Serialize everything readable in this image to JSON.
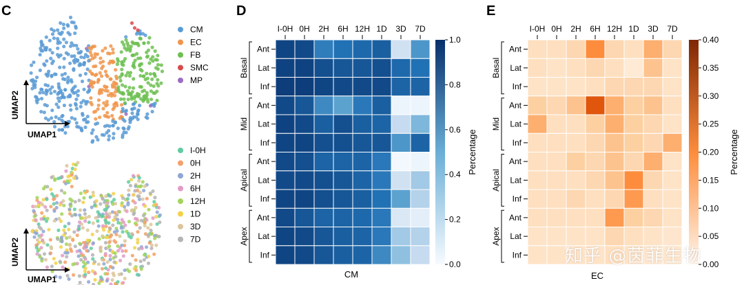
{
  "watermark": "知乎 @茵菲生物",
  "chart_data": [
    {
      "type": "scatter",
      "panel": "C",
      "xlabel": "UMAP1",
      "ylabel": "UMAP2",
      "legend": [
        "CM",
        "EC",
        "FB",
        "SMC",
        "MP"
      ],
      "colors": [
        "#5b9bd5",
        "#f0954a",
        "#6cc050",
        "#d84a4a",
        "#9b6cc0"
      ],
      "legend_position": "right"
    },
    {
      "type": "scatter",
      "xlabel": "UMAP1",
      "ylabel": "UMAP2",
      "legend": [
        "I-0H",
        "0H",
        "2H",
        "6H",
        "12H",
        "1D",
        "3D",
        "7D"
      ],
      "colors": [
        "#5fcca0",
        "#f3a06a",
        "#8ea6d4",
        "#e39ac6",
        "#a2d45a",
        "#f2d14a",
        "#dcc59a",
        "#b3b3b3"
      ],
      "legend_position": "right"
    },
    {
      "type": "heatmap",
      "panel": "D",
      "title": "CM",
      "columns": [
        "I-0H",
        "0H",
        "2H",
        "6H",
        "12H",
        "1D",
        "3D",
        "7D"
      ],
      "rows": [
        "Ant",
        "Lat",
        "Inf",
        "Ant",
        "Lat",
        "Inf",
        "Ant",
        "Lat",
        "Inf",
        "Ant",
        "Lat",
        "Inf"
      ],
      "row_groups": [
        "Basal",
        "Mid",
        "Apical",
        "Apex"
      ],
      "values": [
        [
          0.92,
          0.9,
          0.7,
          0.75,
          0.78,
          0.82,
          0.2,
          0.6
        ],
        [
          0.93,
          0.93,
          0.88,
          0.85,
          0.85,
          0.88,
          0.78,
          0.75
        ],
        [
          0.95,
          0.95,
          0.92,
          0.9,
          0.9,
          0.9,
          0.8,
          0.8
        ],
        [
          0.9,
          0.85,
          0.65,
          0.55,
          0.72,
          0.82,
          0.05,
          0.05
        ],
        [
          0.93,
          0.9,
          0.82,
          0.88,
          0.82,
          0.8,
          0.25,
          0.45
        ],
        [
          0.92,
          0.92,
          0.88,
          0.88,
          0.85,
          0.85,
          0.6,
          0.8
        ],
        [
          0.9,
          0.88,
          0.8,
          0.8,
          0.8,
          0.72,
          0.02,
          0.05
        ],
        [
          0.9,
          0.9,
          0.88,
          0.85,
          0.8,
          0.72,
          0.2,
          0.35
        ],
        [
          0.92,
          0.92,
          0.88,
          0.85,
          0.82,
          0.75,
          0.55,
          0.3
        ],
        [
          0.9,
          0.85,
          0.8,
          0.8,
          0.78,
          0.72,
          0.15,
          0.1
        ],
        [
          0.92,
          0.9,
          0.85,
          0.82,
          0.8,
          0.72,
          0.35,
          0.3
        ],
        [
          0.92,
          0.9,
          0.85,
          0.82,
          0.8,
          0.65,
          0.4,
          0.25
        ]
      ],
      "colorbar": {
        "label": "Percentage",
        "range": [
          0.0,
          1.0
        ],
        "ticks": [
          "0.0",
          "0.2",
          "0.4",
          "0.6",
          "0.8",
          "1.0"
        ]
      }
    },
    {
      "type": "heatmap",
      "panel": "E",
      "title": "EC",
      "columns": [
        "I-0H",
        "0H",
        "2H",
        "6H",
        "12H",
        "1D",
        "3D",
        "7D"
      ],
      "rows": [
        "Ant",
        "Lat",
        "Inf",
        "Ant",
        "Lat",
        "Inf",
        "Ant",
        "Lat",
        "Inf",
        "Ant",
        "Lat",
        "Inf"
      ],
      "row_groups": [
        "Basal",
        "Mid",
        "Apical",
        "Apex"
      ],
      "values": [
        [
          0.06,
          0.06,
          0.08,
          0.2,
          0.08,
          0.06,
          0.15,
          0.08
        ],
        [
          0.06,
          0.05,
          0.06,
          0.08,
          0.06,
          0.03,
          0.12,
          0.05
        ],
        [
          0.05,
          0.05,
          0.05,
          0.06,
          0.08,
          0.08,
          0.08,
          0.05
        ],
        [
          0.1,
          0.08,
          0.12,
          0.28,
          0.15,
          0.1,
          0.12,
          0.06
        ],
        [
          0.15,
          0.06,
          0.06,
          0.1,
          0.15,
          0.1,
          0.08,
          0.05
        ],
        [
          0.06,
          0.06,
          0.06,
          0.08,
          0.12,
          0.1,
          0.08,
          0.15
        ],
        [
          0.06,
          0.06,
          0.1,
          0.08,
          0.12,
          0.08,
          0.15,
          0.05
        ],
        [
          0.06,
          0.06,
          0.06,
          0.08,
          0.12,
          0.2,
          0.08,
          0.05
        ],
        [
          0.06,
          0.06,
          0.08,
          0.06,
          0.08,
          0.18,
          0.06,
          0.05
        ],
        [
          0.06,
          0.06,
          0.06,
          0.06,
          0.18,
          0.1,
          0.08,
          0.05
        ],
        [
          0.05,
          0.05,
          0.05,
          0.05,
          0.08,
          0.06,
          0.05,
          0.04
        ],
        [
          0.05,
          0.05,
          0.05,
          0.05,
          0.06,
          0.05,
          0.04,
          0.04
        ]
      ],
      "colorbar": {
        "label": "Percentage",
        "range": [
          0.0,
          0.4
        ],
        "ticks": [
          "0.00",
          "0.05",
          "0.10",
          "0.15",
          "0.20",
          "0.25",
          "0.30",
          "0.35",
          "0.40"
        ]
      }
    }
  ]
}
